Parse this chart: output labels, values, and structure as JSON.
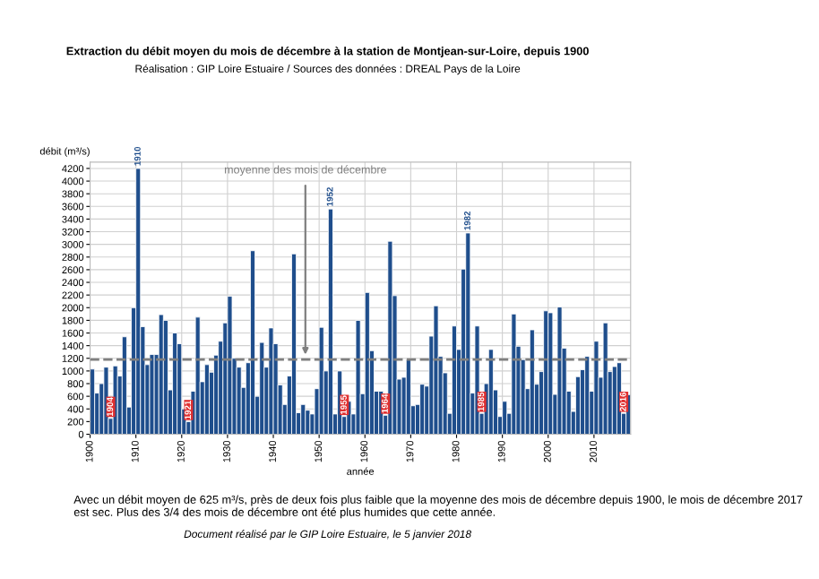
{
  "chart_data": {
    "type": "bar",
    "title": "Extraction du débit moyen du mois de décembre à la station de Montjean-sur-Loire, depuis 1900",
    "subtitle": "Réalisation : GIP Loire Estuaire / Sources des données : DREAL Pays de la Loire",
    "xlabel": "année",
    "ylabel": "débit (m³/s)",
    "x": [
      1900,
      1901,
      1902,
      1903,
      1904,
      1905,
      1906,
      1907,
      1908,
      1909,
      1910,
      1911,
      1912,
      1913,
      1914,
      1915,
      1916,
      1917,
      1918,
      1919,
      1920,
      1921,
      1922,
      1923,
      1924,
      1925,
      1926,
      1927,
      1928,
      1929,
      1930,
      1931,
      1932,
      1933,
      1934,
      1935,
      1936,
      1937,
      1938,
      1939,
      1940,
      1941,
      1942,
      1943,
      1944,
      1945,
      1946,
      1947,
      1948,
      1949,
      1950,
      1951,
      1952,
      1953,
      1954,
      1955,
      1956,
      1957,
      1958,
      1959,
      1960,
      1961,
      1962,
      1963,
      1964,
      1965,
      1966,
      1967,
      1968,
      1969,
      1970,
      1971,
      1972,
      1973,
      1974,
      1975,
      1976,
      1977,
      1978,
      1979,
      1980,
      1981,
      1982,
      1983,
      1984,
      1985,
      1986,
      1987,
      1988,
      1989,
      1990,
      1991,
      1992,
      1993,
      1994,
      1995,
      1996,
      1997,
      1998,
      1999,
      2000,
      2001,
      2002,
      2003,
      2004,
      2005,
      2006,
      2007,
      2008,
      2009,
      2010,
      2011,
      2012,
      2013,
      2014,
      2015,
      2016,
      2017
    ],
    "values": [
      1030,
      650,
      800,
      1060,
      250,
      1080,
      920,
      1540,
      430,
      2000,
      4200,
      1700,
      1100,
      1260,
      1260,
      1890,
      1800,
      700,
      1600,
      1430,
      400,
      200,
      680,
      1850,
      830,
      1100,
      980,
      1250,
      1470,
      1760,
      2180,
      1200,
      1060,
      740,
      1130,
      2900,
      600,
      1450,
      1060,
      1680,
      1430,
      780,
      470,
      920,
      2850,
      340,
      470,
      380,
      320,
      720,
      1690,
      1000,
      3560,
      320,
      1000,
      280,
      520,
      320,
      1800,
      640,
      2240,
      1320,
      680,
      680,
      300,
      3050,
      2190,
      870,
      900,
      1180,
      450,
      470,
      790,
      760,
      1550,
      2030,
      1230,
      970,
      330,
      1710,
      1340,
      2610,
      3180,
      650,
      1710,
      330,
      800,
      1340,
      700,
      280,
      520,
      330,
      1900,
      1390,
      1180,
      720,
      1650,
      790,
      990,
      1950,
      1920,
      630,
      2010,
      1360,
      680,
      360,
      910,
      1020,
      1230,
      680,
      1470,
      900,
      1760,
      990,
      1070,
      1130,
      330,
      625
    ],
    "color": "#1f4e8c",
    "xlim": [
      1900,
      2018
    ],
    "xticks": [
      1900,
      1910,
      1920,
      1930,
      1940,
      1950,
      1960,
      1970,
      1980,
      1990,
      2000,
      2010
    ],
    "ylim": [
      0,
      4300
    ],
    "yticks": [
      0,
      200,
      400,
      600,
      800,
      1000,
      1200,
      1400,
      1600,
      1800,
      2000,
      2200,
      2400,
      2600,
      2800,
      3000,
      3200,
      3400,
      3600,
      3800,
      4000,
      4200
    ],
    "grid": true,
    "ref_lines": [
      {
        "axis": "y",
        "value": 1180,
        "label": "moyenne des mois de décembre",
        "color": "#7f7f7f",
        "line_style": "dashed"
      }
    ],
    "annotations": [
      {
        "text": "1910",
        "x": 1910,
        "y": 4200
      },
      {
        "text": "1952",
        "x": 1952,
        "y": 3560
      },
      {
        "text": "1982",
        "x": 1982,
        "y": 3180
      },
      {
        "text": "1904",
        "x": 1904,
        "y": 250
      },
      {
        "text": "1921",
        "x": 1921,
        "y": 200
      },
      {
        "text": "1955",
        "x": 1955,
        "y": 280
      },
      {
        "text": "1964",
        "x": 1964,
        "y": 300
      },
      {
        "text": "1985",
        "x": 1985,
        "y": 330
      },
      {
        "text": "2016",
        "x": 2016,
        "y": 330
      },
      "Avec un débit moyen de 625 m³/s, près de deux fois plus faible que la moyenne des mois de décembre depuis 1900, le mois de décembre 2017 est sec. Plus des 3/4 des mois de décembre ont été plus humides que cette année.",
      "Document réalisé par le GIP Loire Estuaire, le 5 janvier 2018"
    ]
  }
}
